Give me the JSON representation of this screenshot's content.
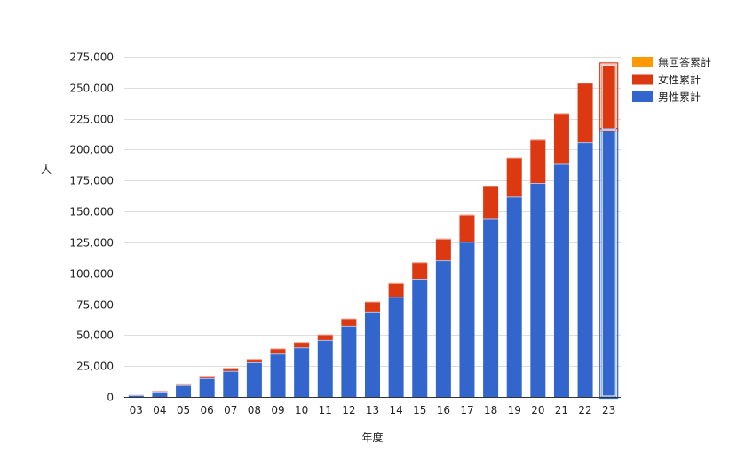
{
  "chart_data": {
    "type": "bar",
    "stacked": true,
    "xlabel": "年度",
    "ylabel": "人",
    "ylim": [
      0,
      275000
    ],
    "yticks": [
      0,
      25000,
      50000,
      75000,
      100000,
      125000,
      150000,
      175000,
      200000,
      225000,
      250000,
      275000
    ],
    "grid": true,
    "legend_position": "right",
    "categories": [
      "03",
      "04",
      "05",
      "06",
      "07",
      "08",
      "09",
      "10",
      "11",
      "12",
      "13",
      "14",
      "15",
      "16",
      "17",
      "18",
      "19",
      "20",
      "21",
      "22",
      "23"
    ],
    "series": [
      {
        "name": "男性累計",
        "color": "#3366cc",
        "values": [
          1600,
          4300,
          9500,
          15200,
          21000,
          28000,
          35000,
          40000,
          46000,
          57500,
          69000,
          81000,
          95500,
          110500,
          125500,
          144000,
          162000,
          173000,
          188500,
          206000,
          216000
        ]
      },
      {
        "name": "女性累計",
        "color": "#dc3912",
        "values": [
          200,
          700,
          1300,
          2000,
          2500,
          2800,
          4200,
          4400,
          4600,
          6000,
          8200,
          11000,
          13500,
          17500,
          22000,
          26500,
          31500,
          35000,
          41000,
          48000,
          53000
        ]
      },
      {
        "name": "無回答累計",
        "color": "#ff9900",
        "values": [
          0,
          0,
          0,
          0,
          0,
          0,
          0,
          0,
          0,
          0,
          0,
          0,
          0,
          0,
          0,
          0,
          0,
          0,
          0,
          0,
          0
        ]
      }
    ],
    "highlighted_category": "23"
  }
}
